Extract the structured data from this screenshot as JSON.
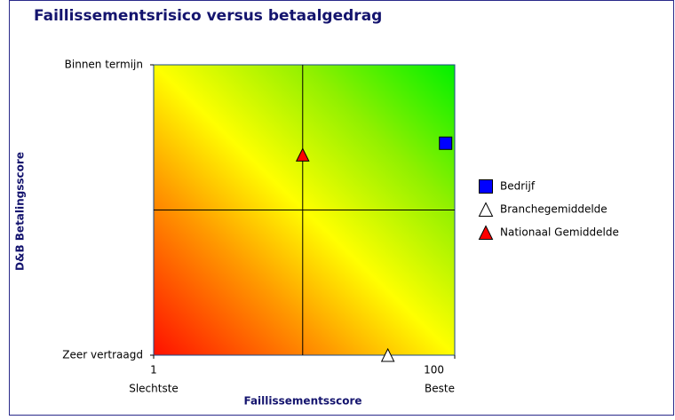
{
  "chart_data": {
    "type": "scatter",
    "title": "Faillissementsrisico versus betaalgedrag",
    "x_label": "Faillissementsscore",
    "y_label": "D&B Betalingsscore",
    "xlim": [
      1,
      100
    ],
    "ylim": [
      0,
      100
    ],
    "xticks": [
      1,
      100
    ],
    "x_tick_sublabels": [
      "Slechtste",
      "Beste"
    ],
    "yticks": [
      {
        "value": 100,
        "label": "Binnen termijn"
      },
      {
        "value": 0,
        "label": "Zeer vertraagd"
      }
    ],
    "dividers": {
      "x": 50,
      "y": 50
    },
    "legend": "right",
    "series": [
      {
        "name": "Bedrijf",
        "color": "#0000ff",
        "marker": "square",
        "x": [
          97
        ],
        "values": [
          73
        ]
      },
      {
        "name": "Branchegemiddelde",
        "color": "#ffffff",
        "marker": "triangle",
        "x": [
          78
        ],
        "values": [
          0
        ]
      },
      {
        "name": "Nationaal Gemiddelde",
        "color": "#ff0000",
        "marker": "triangle",
        "x": [
          50
        ],
        "values": [
          69
        ]
      }
    ]
  }
}
